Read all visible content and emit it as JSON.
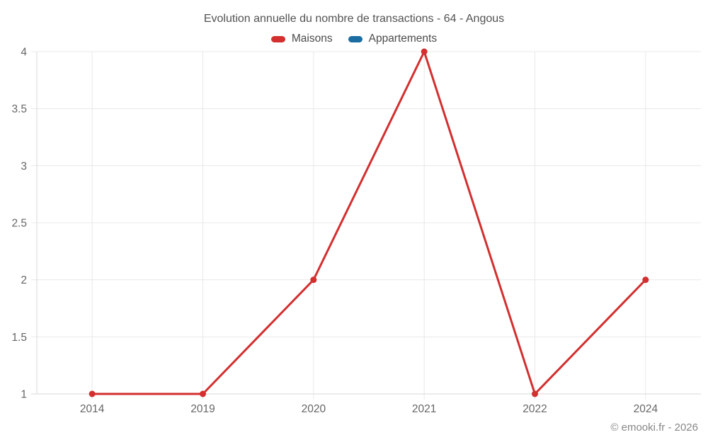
{
  "chart": {
    "title": "Evolution annuelle du nombre de transactions - 64 - Angous",
    "footer": "© emooki.fr - 2026",
    "colors": {
      "maisons": "#d32f2f",
      "appartements": "#1c6da2",
      "grid": "#e8e8e8",
      "axis": "#dadada",
      "tick_text": "#666666",
      "background": "#ffffff"
    }
  },
  "chart_data": {
    "type": "line",
    "title": "Evolution annuelle du nombre de transactions - 64 - Angous",
    "categories": [
      "2014",
      "2019",
      "2020",
      "2021",
      "2022",
      "2024"
    ],
    "series": [
      {
        "name": "Maisons",
        "color": "#d32f2f",
        "values": [
          1,
          1,
          2,
          4,
          1,
          2
        ]
      },
      {
        "name": "Appartements",
        "color": "#1c6da2",
        "values": []
      }
    ],
    "xlabel": "",
    "ylabel": "",
    "ylim": [
      1,
      4
    ],
    "yticks": [
      1,
      1.5,
      2,
      2.5,
      3,
      3.5,
      4
    ],
    "grid": true,
    "legend_position": "top",
    "marker": "circle",
    "annotations": [
      "© emooki.fr - 2026"
    ]
  }
}
